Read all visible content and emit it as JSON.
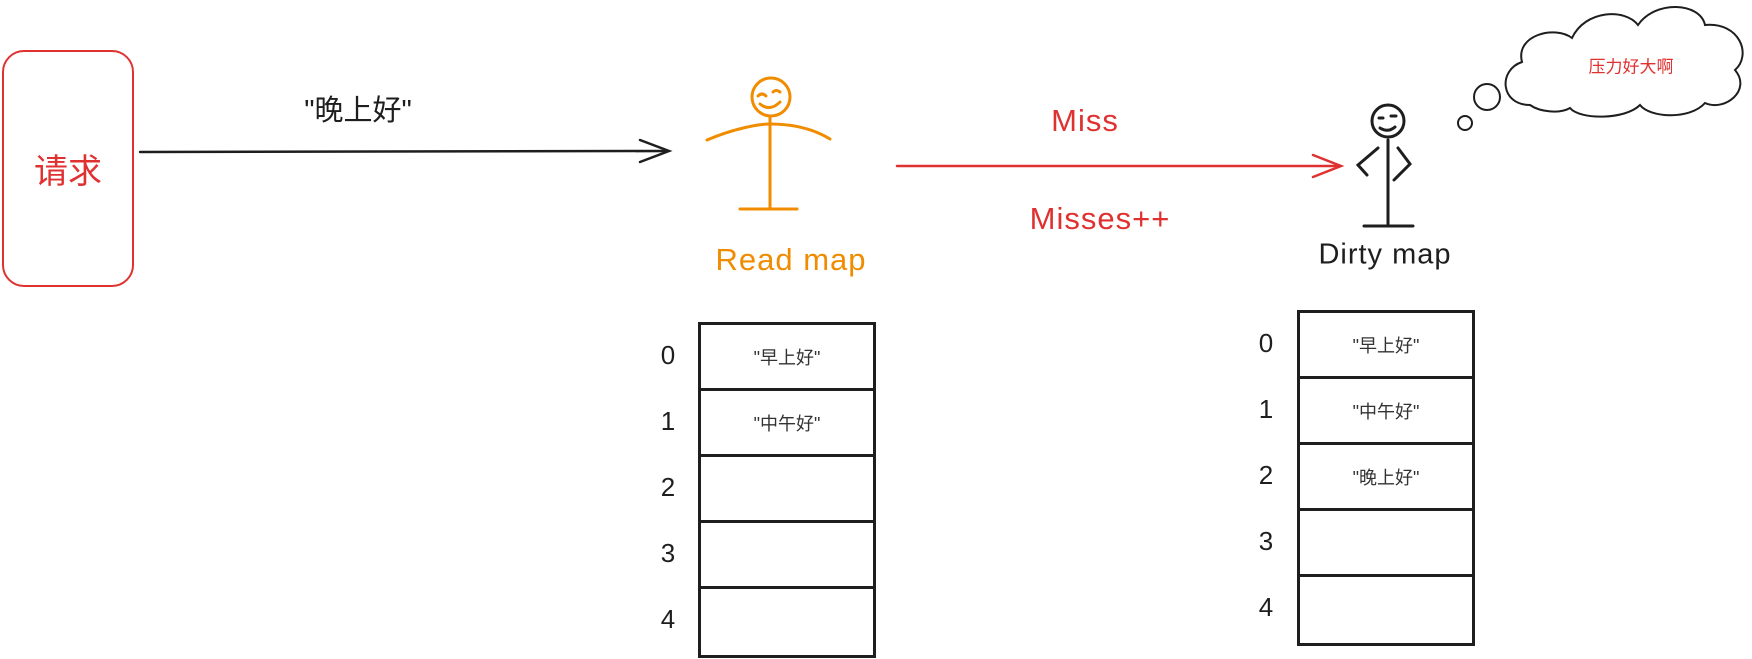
{
  "request": {
    "label": "请求"
  },
  "request_arrow_label": "\"晚上好\"",
  "read_map": {
    "label": "Read map",
    "rows": [
      {
        "index": "0",
        "value": "\"早上好\""
      },
      {
        "index": "1",
        "value": "\"中午好\""
      },
      {
        "index": "2",
        "value": ""
      },
      {
        "index": "3",
        "value": ""
      },
      {
        "index": "4",
        "value": ""
      }
    ]
  },
  "miss_label": "Miss",
  "misses_label": "Misses++",
  "dirty_map": {
    "label": "Dirty map",
    "rows": [
      {
        "index": "0",
        "value": "\"早上好\""
      },
      {
        "index": "1",
        "value": "\"中午好\""
      },
      {
        "index": "2",
        "value": "\"晚上好\""
      },
      {
        "index": "3",
        "value": ""
      },
      {
        "index": "4",
        "value": ""
      }
    ]
  },
  "thought_bubble": "压力好大啊",
  "colors": {
    "red": "#e03131",
    "orange": "#f08c00",
    "ink": "#1e1e1e"
  },
  "icons": [
    "stick-figure-icon",
    "stick-figure-icon",
    "thought-cloud-icon"
  ]
}
